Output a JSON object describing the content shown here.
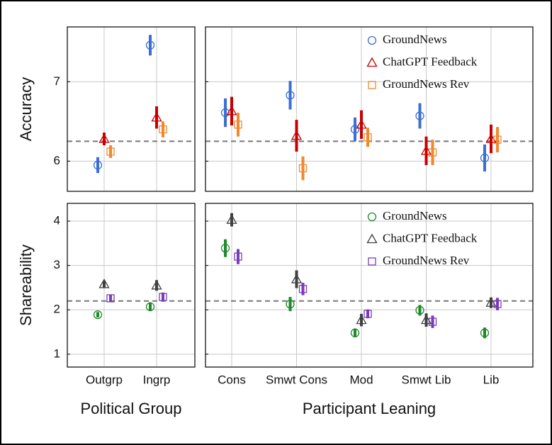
{
  "chart_data": [
    {
      "type": "errorbar",
      "ylabel": "Accuracy",
      "ylim": [
        5.62,
        7.69
      ],
      "yticks": [
        6,
        7
      ],
      "grid": true,
      "hline": 6.25,
      "series": [
        {
          "name": "GroundNews",
          "color": "#3b6fd4",
          "marker": "circle",
          "values": [
            5.95,
            7.46
          ],
          "errors": [
            0.1,
            0.13
          ]
        },
        {
          "name": "ChatGPT Feedback",
          "color": "#c80000",
          "marker": "triangle",
          "values": [
            6.28,
            6.55
          ],
          "errors": [
            0.08,
            0.14
          ]
        },
        {
          "name": "GroundNews Rev",
          "color": "#f0882e",
          "marker": "square",
          "values": [
            6.12,
            6.4
          ],
          "errors": [
            0.08,
            0.1
          ]
        }
      ]
    },
    {
      "type": "errorbar",
      "legend": "upper right",
      "series": [
        {
          "name": "GroundNews",
          "color": "#3b6fd4",
          "marker": "circle",
          "values": [
            6.61,
            6.83,
            6.4,
            6.57,
            6.04
          ],
          "errors": [
            0.18,
            0.18,
            0.15,
            0.16,
            0.17
          ]
        },
        {
          "name": "ChatGPT Feedback",
          "color": "#c80000",
          "marker": "triangle",
          "values": [
            6.63,
            6.32,
            6.46,
            6.13,
            6.28
          ],
          "errors": [
            0.18,
            0.2,
            0.18,
            0.18,
            0.18
          ]
        },
        {
          "name": "GroundNews Rev",
          "color": "#f0882e",
          "marker": "square",
          "values": [
            6.46,
            5.91,
            6.3,
            6.11,
            6.27
          ],
          "errors": [
            0.15,
            0.15,
            0.12,
            0.16,
            0.16
          ]
        }
      ]
    },
    {
      "type": "errorbar",
      "ylabel": "Shareability",
      "xlabel": "Political Group",
      "categories": [
        "Outgrp",
        "Ingrp"
      ],
      "ylim": [
        0.71,
        4.4
      ],
      "yticks": [
        1,
        2,
        3,
        4
      ],
      "grid": true,
      "hline": 2.2,
      "series": [
        {
          "name": "GroundNews",
          "color": "#1f8a2c",
          "marker": "circle",
          "values": [
            1.89,
            2.07
          ],
          "errors": [
            0.06,
            0.1
          ]
        },
        {
          "name": "ChatGPT Feedback",
          "color": "#404040",
          "marker": "triangle",
          "values": [
            2.58,
            2.55
          ],
          "errors": [
            0.08,
            0.12
          ]
        },
        {
          "name": "GroundNews Rev",
          "color": "#7a3db8",
          "marker": "square",
          "values": [
            2.26,
            2.29
          ],
          "errors": [
            0.08,
            0.1
          ]
        }
      ]
    },
    {
      "type": "errorbar",
      "xlabel": "Participant Leaning",
      "categories": [
        "Cons",
        "Smwt Cons",
        "Mod",
        "Smwt Lib",
        "Lib"
      ],
      "legend": "upper right",
      "series": [
        {
          "name": "GroundNews",
          "color": "#1f8a2c",
          "marker": "circle",
          "values": [
            3.39,
            2.13,
            1.48,
            1.99,
            1.48
          ],
          "errors": [
            0.2,
            0.16,
            0.1,
            0.12,
            0.12
          ]
        },
        {
          "name": "ChatGPT Feedback",
          "color": "#404040",
          "marker": "triangle",
          "values": [
            4.03,
            2.69,
            1.77,
            1.77,
            2.16
          ],
          "errors": [
            0.15,
            0.2,
            0.14,
            0.15,
            0.12
          ]
        },
        {
          "name": "GroundNews Rev",
          "color": "#7a3db8",
          "marker": "square",
          "values": [
            3.2,
            2.47,
            1.91,
            1.73,
            2.13
          ],
          "errors": [
            0.17,
            0.14,
            0.1,
            0.14,
            0.14
          ]
        }
      ]
    }
  ]
}
